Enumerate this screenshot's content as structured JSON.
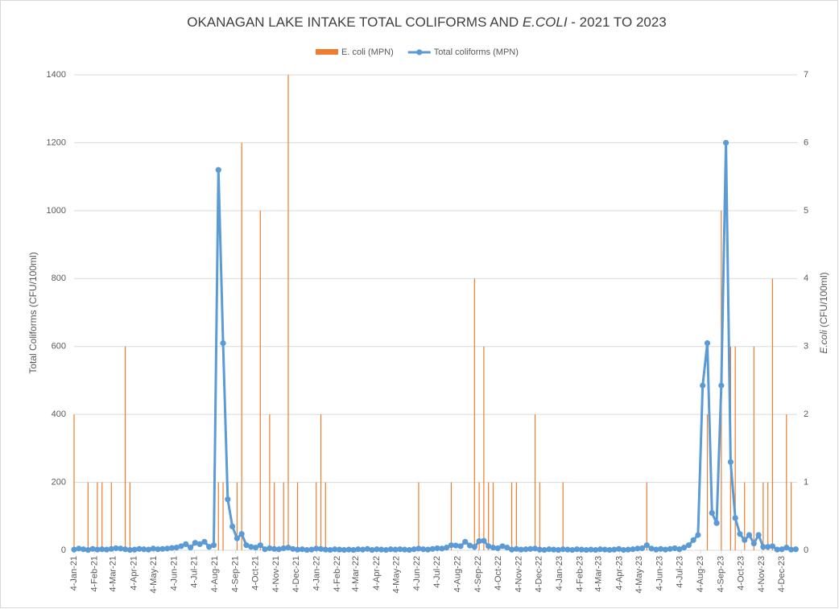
{
  "chart_data": {
    "type": "bar-line",
    "title": [
      "OKANAGAN LAKE INTAKE TOTAL COLIFORMS AND ",
      "E.COLI",
      " - 2021 TO 2023"
    ],
    "y_label": "Total Coliforms (CFU/100ml)",
    "y2_label": [
      "E.coli",
      " (CFU/100ml)"
    ],
    "x": [
      "2021-01-04",
      "2021-01-11",
      "2021-01-18",
      "2021-01-25",
      "2021-02-01",
      "2021-02-08",
      "2021-02-15",
      "2021-02-22",
      "2021-03-01",
      "2021-03-08",
      "2021-03-15",
      "2021-03-22",
      "2021-03-29",
      "2021-04-05",
      "2021-04-12",
      "2021-04-19",
      "2021-04-26",
      "2021-05-03",
      "2021-05-10",
      "2021-05-17",
      "2021-05-24",
      "2021-05-31",
      "2021-06-07",
      "2021-06-14",
      "2021-06-21",
      "2021-06-28",
      "2021-07-05",
      "2021-07-12",
      "2021-07-19",
      "2021-07-26",
      "2021-08-02",
      "2021-08-09",
      "2021-08-16",
      "2021-08-23",
      "2021-08-30",
      "2021-09-06",
      "2021-09-13",
      "2021-09-20",
      "2021-09-27",
      "2021-10-04",
      "2021-10-11",
      "2021-10-18",
      "2021-10-25",
      "2021-11-01",
      "2021-11-08",
      "2021-11-15",
      "2021-11-22",
      "2021-11-29",
      "2021-12-06",
      "2021-12-13",
      "2021-12-20",
      "2021-12-27",
      "2022-01-03",
      "2022-01-10",
      "2022-01-17",
      "2022-01-24",
      "2022-01-31",
      "2022-02-07",
      "2022-02-14",
      "2022-02-21",
      "2022-02-28",
      "2022-03-07",
      "2022-03-14",
      "2022-03-21",
      "2022-03-28",
      "2022-04-04",
      "2022-04-11",
      "2022-04-18",
      "2022-04-25",
      "2022-05-02",
      "2022-05-09",
      "2022-05-16",
      "2022-05-23",
      "2022-05-30",
      "2022-06-06",
      "2022-06-13",
      "2022-06-20",
      "2022-06-27",
      "2022-07-04",
      "2022-07-11",
      "2022-07-18",
      "2022-07-25",
      "2022-08-01",
      "2022-08-08",
      "2022-08-15",
      "2022-08-22",
      "2022-08-29",
      "2022-09-05",
      "2022-09-12",
      "2022-09-19",
      "2022-09-26",
      "2022-10-03",
      "2022-10-10",
      "2022-10-17",
      "2022-10-24",
      "2022-10-31",
      "2022-11-07",
      "2022-11-14",
      "2022-11-21",
      "2022-11-28",
      "2022-12-05",
      "2022-12-12",
      "2022-12-19",
      "2022-12-26",
      "2023-01-02",
      "2023-01-09",
      "2023-01-16",
      "2023-01-23",
      "2023-01-30",
      "2023-02-06",
      "2023-02-13",
      "2023-02-20",
      "2023-02-27",
      "2023-03-06",
      "2023-03-13",
      "2023-03-20",
      "2023-03-27",
      "2023-04-03",
      "2023-04-10",
      "2023-04-17",
      "2023-04-24",
      "2023-05-01",
      "2023-05-08",
      "2023-05-15",
      "2023-05-22",
      "2023-05-29",
      "2023-06-05",
      "2023-06-12",
      "2023-06-19",
      "2023-06-26",
      "2023-07-03",
      "2023-07-10",
      "2023-07-17",
      "2023-07-24",
      "2023-07-31",
      "2023-08-07",
      "2023-08-14",
      "2023-08-21",
      "2023-08-28",
      "2023-09-04",
      "2023-09-11",
      "2023-09-18",
      "2023-09-25",
      "2023-10-02",
      "2023-10-09",
      "2023-10-16",
      "2023-10-23",
      "2023-10-30",
      "2023-11-06",
      "2023-11-13",
      "2023-11-20",
      "2023-11-27",
      "2023-12-04",
      "2023-12-11",
      "2023-12-18",
      "2023-12-25"
    ],
    "series": [
      {
        "name": "E. coli (MPN)",
        "color": "#ed7d31",
        "kind": "bar",
        "axis": "y2",
        "values": [
          2,
          0,
          0,
          1,
          0,
          1,
          1,
          0,
          1,
          0,
          0,
          3,
          1,
          0,
          0,
          0,
          0,
          0,
          0,
          0,
          0,
          0,
          0,
          0,
          0,
          0,
          0,
          0,
          0,
          0,
          0,
          1,
          1,
          0,
          0,
          1,
          6,
          0,
          0,
          0,
          5,
          0,
          2,
          1,
          0,
          1,
          7,
          0,
          1,
          0,
          0,
          0,
          1,
          2,
          1,
          0,
          0,
          0,
          0,
          0,
          0,
          0,
          0,
          0,
          0,
          0,
          0,
          0,
          0,
          0,
          0,
          0,
          0,
          0,
          1,
          0,
          0,
          0,
          0,
          0,
          0,
          1,
          0,
          0,
          0,
          0,
          4,
          1,
          3,
          1,
          1,
          0,
          0,
          0,
          1,
          1,
          0,
          0,
          0,
          2,
          1,
          0,
          0,
          0,
          0,
          1,
          0,
          0,
          0,
          0,
          0,
          0,
          0,
          0,
          0,
          0,
          0,
          0,
          0,
          0,
          0,
          0,
          0,
          1,
          0,
          0,
          0,
          0,
          0,
          0,
          0,
          0,
          0,
          0,
          0,
          0,
          2,
          0,
          0,
          5,
          0,
          3,
          3,
          0,
          1,
          0,
          3,
          0,
          1,
          1,
          4,
          0,
          0,
          2,
          1,
          0
        ]
      },
      {
        "name": "Total coliforms (MPN)",
        "color": "#5b9bd5",
        "kind": "line",
        "values": [
          2,
          5,
          3,
          1,
          4,
          2,
          3,
          2,
          4,
          6,
          5,
          3,
          1,
          2,
          4,
          3,
          2,
          5,
          3,
          4,
          5,
          7,
          8,
          12,
          18,
          8,
          22,
          18,
          25,
          10,
          15,
          1120,
          610,
          150,
          70,
          35,
          48,
          15,
          10,
          8,
          15,
          3,
          6,
          4,
          3,
          6,
          8,
          4,
          2,
          3,
          1,
          2,
          5,
          4,
          2,
          1,
          3,
          2,
          1,
          2,
          1,
          3,
          2,
          4,
          1,
          3,
          2,
          1,
          3,
          2,
          3,
          2,
          1,
          3,
          5,
          3,
          2,
          4,
          6,
          5,
          8,
          15,
          14,
          12,
          25,
          14,
          10,
          27,
          28,
          12,
          8,
          6,
          12,
          8,
          2,
          4,
          2,
          3,
          4,
          5,
          2,
          1,
          3,
          2,
          1,
          3,
          2,
          1,
          3,
          2,
          1,
          2,
          1,
          3,
          2,
          1,
          2,
          4,
          1,
          2,
          3,
          5,
          6,
          15,
          5,
          2,
          4,
          2,
          4,
          6,
          3,
          8,
          15,
          30,
          45,
          485,
          610,
          110,
          80,
          485,
          1200,
          260,
          95,
          48,
          30,
          45,
          20,
          45,
          10,
          10,
          12,
          2,
          3,
          8,
          2,
          3
        ]
      }
    ],
    "xlim": [
      "2021-01-04",
      "2023-12-27"
    ],
    "xticks": [
      {
        "value": "2021-01-04",
        "label": "4-Jan-21"
      },
      {
        "value": "2021-02-04",
        "label": "4-Feb-21"
      },
      {
        "value": "2021-03-04",
        "label": "4-Mar-21"
      },
      {
        "value": "2021-04-04",
        "label": "4-Apr-21"
      },
      {
        "value": "2021-05-04",
        "label": "4-May-21"
      },
      {
        "value": "2021-06-04",
        "label": "4-Jun-21"
      },
      {
        "value": "2021-07-04",
        "label": "4-Jul-21"
      },
      {
        "value": "2021-08-04",
        "label": "4-Aug-21"
      },
      {
        "value": "2021-09-04",
        "label": "4-Sep-21"
      },
      {
        "value": "2021-10-04",
        "label": "4-Oct-21"
      },
      {
        "value": "2021-11-04",
        "label": "4-Nov-21"
      },
      {
        "value": "2021-12-04",
        "label": "4-Dec-21"
      },
      {
        "value": "2022-01-04",
        "label": "4-Jan-22"
      },
      {
        "value": "2022-02-04",
        "label": "4-Feb-22"
      },
      {
        "value": "2022-03-04",
        "label": "4-Mar-22"
      },
      {
        "value": "2022-04-04",
        "label": "4-Apr-22"
      },
      {
        "value": "2022-05-04",
        "label": "4-May-22"
      },
      {
        "value": "2022-06-04",
        "label": "4-Jun-22"
      },
      {
        "value": "2022-07-04",
        "label": "4-Jul-22"
      },
      {
        "value": "2022-08-04",
        "label": "4-Aug-22"
      },
      {
        "value": "2022-09-04",
        "label": "4-Sep-22"
      },
      {
        "value": "2022-10-04",
        "label": "4-Oct-22"
      },
      {
        "value": "2022-11-04",
        "label": "4-Nov-22"
      },
      {
        "value": "2022-12-04",
        "label": "4-Dec-22"
      },
      {
        "value": "2023-01-04",
        "label": "4-Jan-23"
      },
      {
        "value": "2023-02-04",
        "label": "4-Feb-23"
      },
      {
        "value": "2023-03-04",
        "label": "4-Mar-23"
      },
      {
        "value": "2023-04-04",
        "label": "4-Apr-23"
      },
      {
        "value": "2023-05-04",
        "label": "4-May-23"
      },
      {
        "value": "2023-06-04",
        "label": "4-Jun-23"
      },
      {
        "value": "2023-07-04",
        "label": "4-Jul-23"
      },
      {
        "value": "2023-08-04",
        "label": "4-Aug-23"
      },
      {
        "value": "2023-09-04",
        "label": "4-Sep-23"
      },
      {
        "value": "2023-10-04",
        "label": "4-Oct-23"
      },
      {
        "value": "2023-11-04",
        "label": "4-Nov-23"
      },
      {
        "value": "2023-12-04",
        "label": "4-Dec-23"
      }
    ],
    "ylim": [
      0,
      1400
    ],
    "yticks": [
      0,
      200,
      400,
      600,
      800,
      1000,
      1200,
      1400
    ],
    "y2lim": [
      0,
      7
    ],
    "y2ticks": [
      0,
      1,
      2,
      3,
      4,
      5,
      6,
      7
    ],
    "grid": true,
    "legend": "top"
  }
}
